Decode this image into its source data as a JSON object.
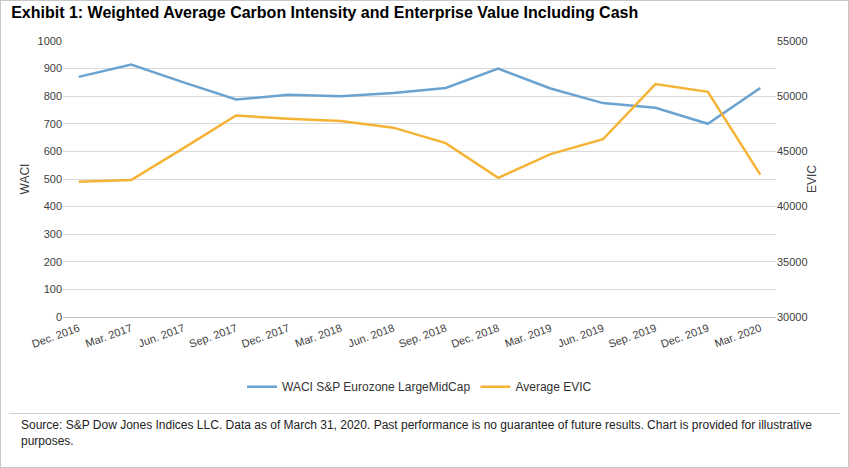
{
  "chart_data": {
    "type": "line",
    "title": "Exhibit 1: Weighted Average Carbon Intensity and Enterprise Value Including Cash",
    "categories": [
      "Dec. 2016",
      "Mar. 2017",
      "Jun. 2017",
      "Sep. 2017",
      "Dec. 2017",
      "Mar. 2018",
      "Jun. 2018",
      "Sep. 2018",
      "Dec. 2018",
      "Mar. 2019",
      "Jun. 2019",
      "Sep. 2019",
      "Dec. 2019",
      "Mar. 2020"
    ],
    "series": [
      {
        "name": "WACI S&P Eurozone LargeMidCap",
        "color": "#6ba3d0",
        "values": [
          870,
          915,
          850,
          788,
          805,
          800,
          812,
          830,
          900,
          828,
          775,
          758,
          700,
          830
        ]
      },
      {
        "name": "Average EVIC",
        "color": "#f5b335",
        "axis": "y2",
        "values": [
          42250,
          42400,
          45300,
          48250,
          47950,
          47750,
          47150,
          45750,
          42600,
          44750,
          46100,
          51100,
          50400,
          42900
        ]
      }
    ],
    "y_label": "WACI",
    "y2_label": "EVIC",
    "ylim": [
      0,
      1000
    ],
    "yticks": [
      0,
      100,
      200,
      300,
      400,
      500,
      600,
      700,
      800,
      900,
      1000
    ],
    "y2lim": [
      30000,
      55000
    ],
    "y2ticks": [
      30000,
      35000,
      40000,
      45000,
      50000,
      55000
    ],
    "grid": true,
    "legend": "bottom",
    "note": "Source: S&P Dow Jones Indices LLC. Data as of March 31, 2020. Past performance is no guarantee of future results. Chart is provided for illustrative purposes."
  }
}
